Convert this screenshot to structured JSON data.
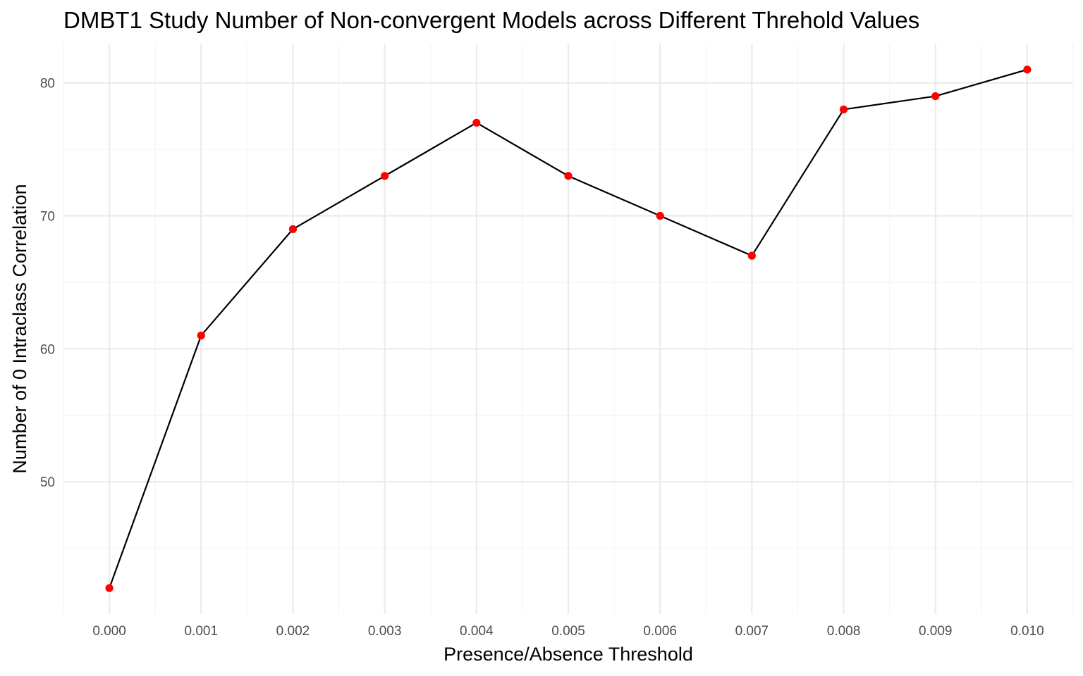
{
  "chart_data": {
    "type": "line",
    "title": "DMBT1 Study Number of Non-convergent Models across Different Threhold Values",
    "xlabel": "Presence/Absence Threshold",
    "ylabel": "Number of 0 Intraclass Correlation",
    "x": [
      0.0,
      0.001,
      0.002,
      0.003,
      0.004,
      0.005,
      0.006,
      0.007,
      0.008,
      0.009,
      0.01
    ],
    "x_tick_labels": [
      "0.000",
      "0.001",
      "0.002",
      "0.003",
      "0.004",
      "0.005",
      "0.006",
      "0.007",
      "0.008",
      "0.009",
      "0.010"
    ],
    "series": [
      {
        "values": [
          42,
          61,
          69,
          73,
          77,
          73,
          70,
          67,
          78,
          79,
          81
        ]
      }
    ],
    "y_ticks": [
      50,
      60,
      70,
      80
    ],
    "xlim": [
      -0.0005,
      0.0105
    ],
    "ylim": [
      40.05,
      82.95
    ],
    "grid": true,
    "legend": "none",
    "colors": {
      "line": "#000000",
      "points": "#ff0000",
      "grid_major": "#ebebeb",
      "grid_minor": "#f3f3f3",
      "tick_text": "#4d4d4d"
    }
  }
}
